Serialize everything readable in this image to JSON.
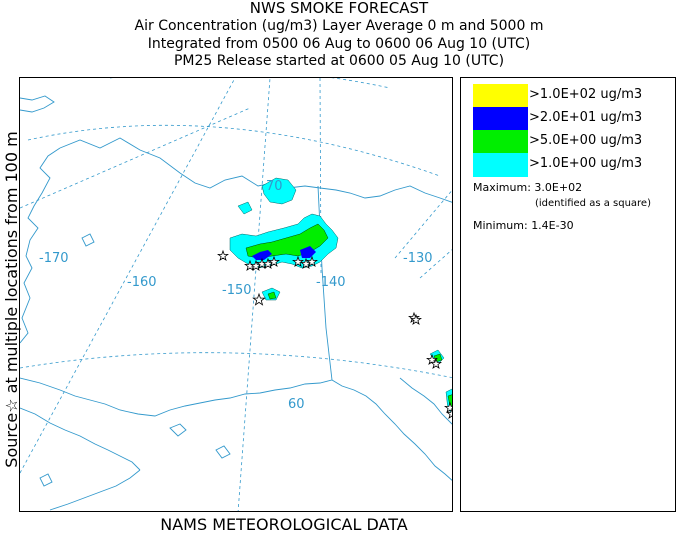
{
  "header": {
    "title": "NWS SMOKE FORECAST",
    "line2": "Air Concentration (ug/m3) Layer Average    0 m and  5000 m",
    "line3": "Integrated from 0500 06 Aug to 0600 06 Aug 10 (UTC)",
    "line4": "PM25 Release started at 0600 05 Aug 10 (UTC)"
  },
  "side_label": "Source☆  at multiple locations   from   100 m",
  "footer": "NAMS METEOROLOGICAL DATA",
  "map": {
    "longitude_labels": [
      "-170",
      "-160",
      "-150",
      "-140",
      "-130"
    ],
    "latitude_labels": [
      "70",
      "60"
    ],
    "label_color": "#3399cc"
  },
  "legend": {
    "items": [
      {
        "label": ">1.0E+02 ug/m3",
        "color": "#ffff00"
      },
      {
        "label": ">2.0E+01 ug/m3",
        "color": "#0000ff"
      },
      {
        "label": ">5.0E+00 ug/m3",
        "color": "#00ee00"
      },
      {
        "label": ">1.0E+00 ug/m3",
        "color": "#00ffff"
      }
    ],
    "maximum_label": "Maximum: ",
    "maximum_value": "3.0E+02",
    "maximum_note": "(identified as a square)",
    "minimum_label": "Minimum: ",
    "minimum_value": "1.4E-30"
  }
}
